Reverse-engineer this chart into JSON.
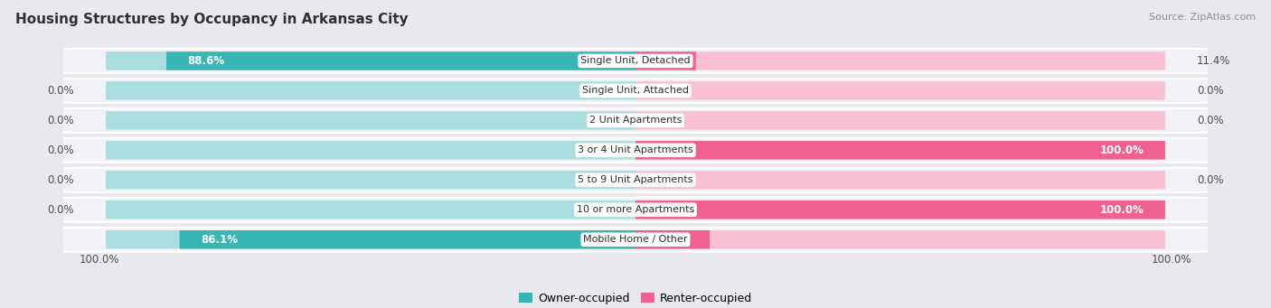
{
  "title": "Housing Structures by Occupancy in Arkansas City",
  "source": "Source: ZipAtlas.com",
  "categories": [
    "Single Unit, Detached",
    "Single Unit, Attached",
    "2 Unit Apartments",
    "3 or 4 Unit Apartments",
    "5 to 9 Unit Apartments",
    "10 or more Apartments",
    "Mobile Home / Other"
  ],
  "owner_pct": [
    88.6,
    0.0,
    0.0,
    0.0,
    0.0,
    0.0,
    86.1
  ],
  "renter_pct": [
    11.4,
    0.0,
    0.0,
    100.0,
    0.0,
    100.0,
    14.0
  ],
  "owner_color": "#38b6b6",
  "renter_color": "#f06090",
  "owner_light": "#aadede",
  "renter_light": "#f9c0d4",
  "bg_color": "#e8e8ee",
  "row_bg": "#f2f2f6",
  "row_edge": "#ffffff",
  "title_color": "#303030",
  "source_color": "#909090",
  "label_white": "#ffffff",
  "label_dark": "#505050",
  "center_label_color": "#303030",
  "bottom_left": "100.0%",
  "bottom_right": "100.0%"
}
